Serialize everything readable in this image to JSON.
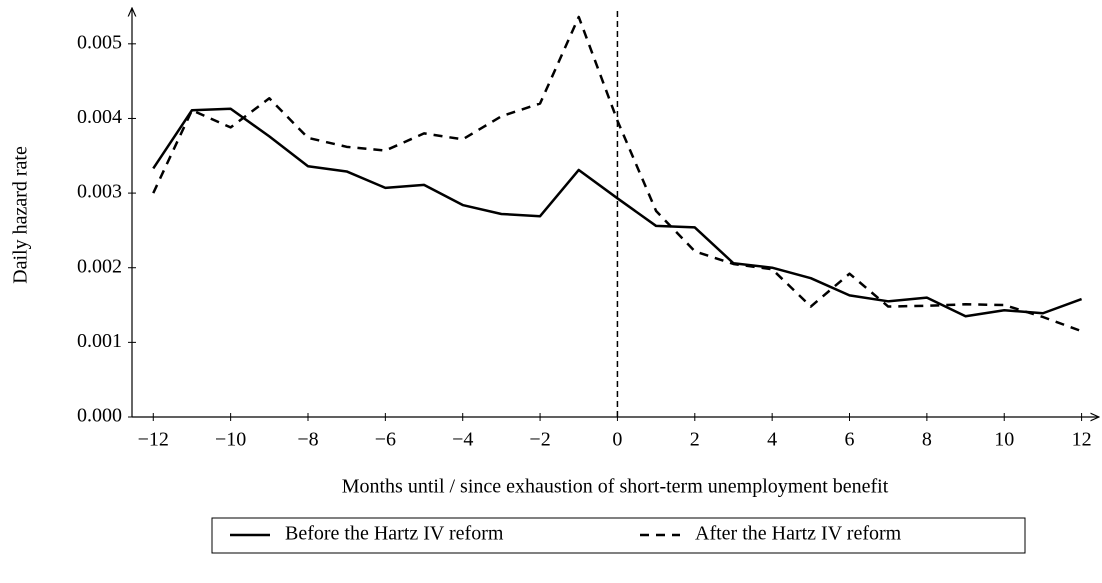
{
  "chart_data": {
    "type": "line",
    "x_label": "Months until / since exhaustion of short-term unemployment benefit",
    "y_label": "Daily hazard rate",
    "x": [
      -12,
      -11,
      -10,
      -9,
      -8,
      -7,
      -6,
      -5,
      -4,
      -3,
      -2,
      -1,
      0,
      1,
      2,
      3,
      4,
      5,
      6,
      7,
      8,
      9,
      10,
      11,
      12
    ],
    "series": [
      {
        "name": "Before the Hartz IV reform",
        "color": "#000000",
        "dash": "solid",
        "values": [
          0.00333,
          0.00411,
          0.00413,
          0.00376,
          0.00336,
          0.00329,
          0.00307,
          0.00311,
          0.00284,
          0.00272,
          0.00269,
          0.00331,
          0.00293,
          0.00256,
          0.00254,
          0.00206,
          0.002,
          0.00186,
          0.00163,
          0.00155,
          0.0016,
          0.00135,
          0.00143,
          0.00139,
          0.00158
        ]
      },
      {
        "name": "After the Hartz IV reform",
        "color": "#000000",
        "dash": "dashed",
        "values": [
          0.003,
          0.00411,
          0.00388,
          0.00427,
          0.00374,
          0.00362,
          0.00357,
          0.0038,
          0.00372,
          0.00403,
          0.0042,
          0.00536,
          0.00397,
          0.00276,
          0.00222,
          0.00205,
          0.00198,
          0.00148,
          0.00192,
          0.00148,
          0.00149,
          0.00151,
          0.0015,
          0.00134,
          0.00115
        ]
      }
    ],
    "vline": 0,
    "xlim": [
      -12.55,
      12.45
    ],
    "ylim": [
      0,
      0.00548
    ],
    "xticks": [
      {
        "value": -12,
        "label": "−12"
      },
      {
        "value": -10,
        "label": "−10"
      },
      {
        "value": -8,
        "label": "−8"
      },
      {
        "value": -6,
        "label": "−6"
      },
      {
        "value": -4,
        "label": "−4"
      },
      {
        "value": -2,
        "label": "−2"
      },
      0,
      2,
      4,
      6,
      8,
      10,
      12
    ],
    "yticks": [
      {
        "value": 0,
        "label": "0.000"
      },
      {
        "value": 0.001,
        "label": "0.001"
      },
      {
        "value": 0.002,
        "label": "0.002"
      },
      {
        "value": 0.003,
        "label": "0.003"
      },
      {
        "value": 0.004,
        "label": "0.004"
      },
      {
        "value": 0.005,
        "label": "0.005"
      }
    ],
    "legend": "bottom"
  }
}
